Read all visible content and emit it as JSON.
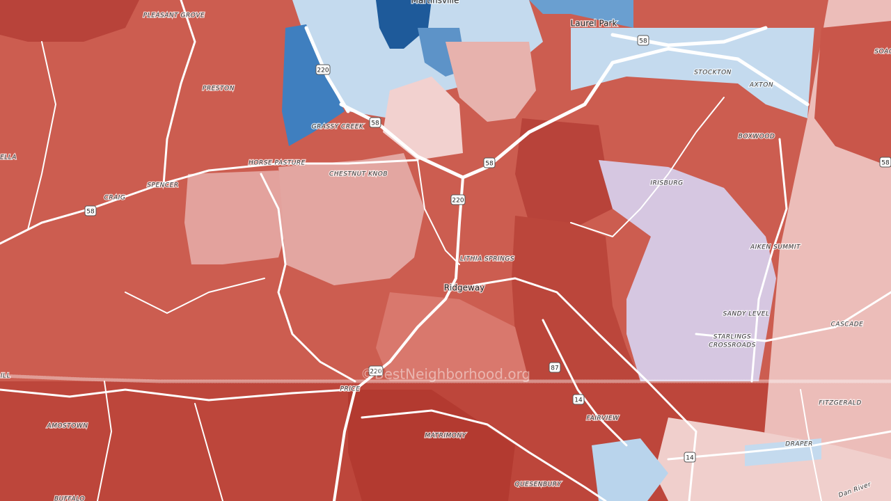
{
  "map": {
    "places": [
      "Martinsville",
      "PLEASANT GROVE",
      "Laurel Park",
      "PRESTON",
      "STOCKTON",
      "AXTON",
      "BOXWOOD",
      "GRASSY CREEK",
      "HORSE PASTURE",
      "CHESTNUT KNOB",
      "SPENCER",
      "CRAIG",
      "IRISBURG",
      "AIKEN SUMMIT",
      "LITHIA SPRINGS",
      "Ridgeway",
      "SANDY LEVEL",
      "CASCADE",
      "PRICE",
      "FAIRVIEW",
      "FITZGERALD",
      "AMOSTOWN",
      "MATRIMONY",
      "DRAPER",
      "QUESENBURY",
      "BUFFALO",
      "ELLA",
      "SOAC",
      "ILL"
    ],
    "multiline_place": [
      "STARLINGS",
      "CROSSROADS"
    ],
    "river": "Dan River",
    "shields": [
      "220",
      "58",
      "58",
      "58",
      "220",
      "58",
      "220",
      "87",
      "14",
      "14",
      "58"
    ],
    "watermark": "©BestNeighborhood.org"
  }
}
